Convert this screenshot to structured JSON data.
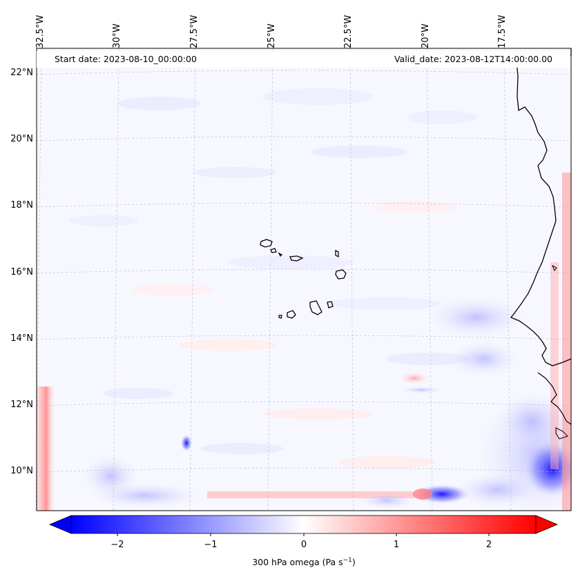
{
  "map": {
    "longitude_labels": [
      "32.5°W",
      "30°W",
      "27.5°W",
      "25°W",
      "22.5°W",
      "20°W",
      "17.5°W"
    ],
    "latitude_labels": [
      "22°N",
      "20°N",
      "18°N",
      "16°N",
      "14°N",
      "12°N",
      "10°N"
    ],
    "start_date_text": "Start date: 2023-08-10_00:00:00",
    "valid_date_text": "Valid_date: 2023-08-12T14:00:00.00",
    "features": [
      "west-african-coastline",
      "cape-verde-islands"
    ],
    "field_colors": {
      "negative": "#0000ff",
      "zero": "#ffffff",
      "positive": "#ff0000",
      "background_tint": "#f7f7ff"
    }
  },
  "colorbar": {
    "ticks": [
      "−2",
      "−1",
      "0",
      "1",
      "2"
    ],
    "label_prefix": "300 hPa omega (Pa s",
    "label_exponent": "−1",
    "label_suffix": ")",
    "range": [
      -2.6,
      2.6
    ],
    "colormap": "bwr"
  }
}
